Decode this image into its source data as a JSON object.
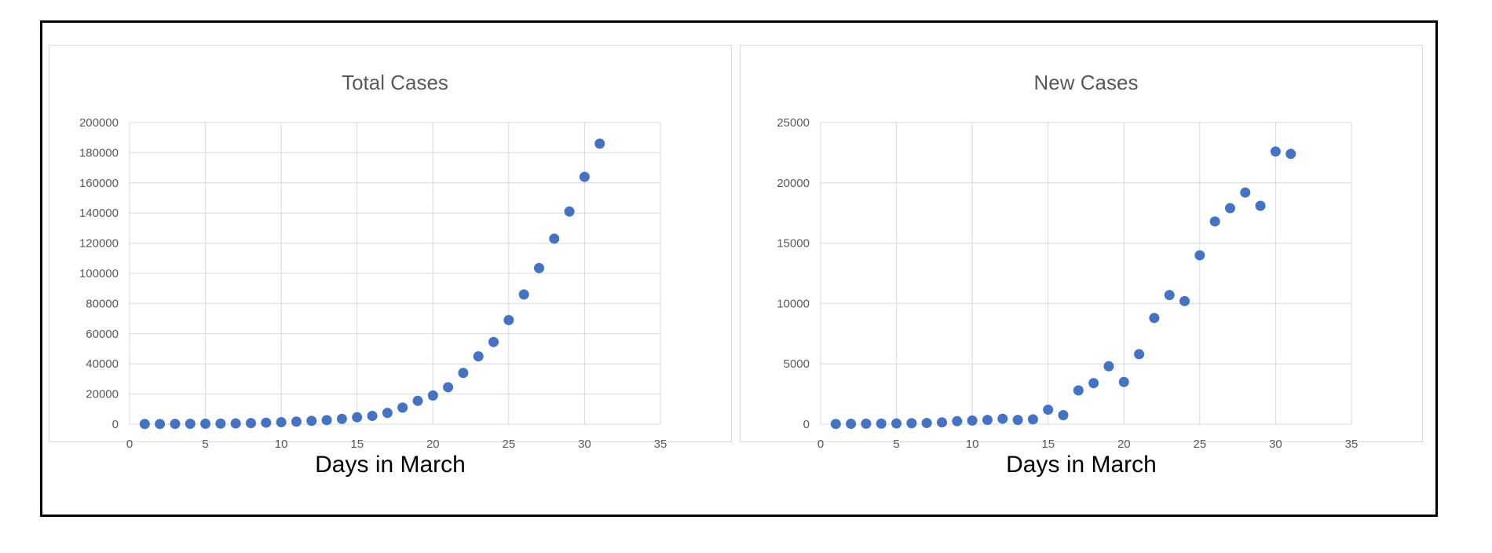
{
  "colors": {
    "marker": "#4472c4",
    "grid": "#d9d9d9",
    "text": "#595959"
  },
  "chart_data": [
    {
      "type": "scatter",
      "title": "Total Cases",
      "xlabel": "Days in March",
      "ylabel": "",
      "xlim": [
        0,
        35
      ],
      "ylim": [
        0,
        200000
      ],
      "xticks": [
        0,
        5,
        10,
        15,
        20,
        25,
        30,
        35
      ],
      "yticks": [
        0,
        20000,
        40000,
        60000,
        80000,
        100000,
        120000,
        140000,
        160000,
        180000,
        200000
      ],
      "grid": true,
      "x": [
        1,
        2,
        3,
        4,
        5,
        6,
        7,
        8,
        9,
        10,
        11,
        12,
        13,
        14,
        15,
        16,
        17,
        18,
        19,
        20,
        21,
        22,
        23,
        24,
        25,
        26,
        27,
        28,
        29,
        30,
        31
      ],
      "y": [
        100,
        150,
        200,
        250,
        300,
        400,
        500,
        700,
        1000,
        1300,
        1700,
        2200,
        2700,
        3500,
        4600,
        5500,
        7500,
        11000,
        15500,
        19000,
        24500,
        34000,
        45000,
        54500,
        69000,
        86000,
        103500,
        123000,
        141000,
        164000,
        186000
      ]
    },
    {
      "type": "scatter",
      "title": "New Cases",
      "xlabel": "Days in March",
      "ylabel": "",
      "xlim": [
        0,
        35
      ],
      "ylim": [
        0,
        25000
      ],
      "xticks": [
        0,
        5,
        10,
        15,
        20,
        25,
        30,
        35
      ],
      "yticks": [
        0,
        5000,
        10000,
        15000,
        20000,
        25000
      ],
      "grid": true,
      "x": [
        1,
        2,
        3,
        4,
        5,
        6,
        7,
        8,
        9,
        10,
        11,
        12,
        13,
        14,
        15,
        16,
        17,
        18,
        19,
        20,
        21,
        22,
        23,
        24,
        25,
        26,
        27,
        28,
        29,
        30,
        31
      ],
      "y": [
        20,
        30,
        40,
        50,
        60,
        80,
        100,
        150,
        250,
        300,
        350,
        450,
        350,
        400,
        1200,
        750,
        2800,
        3400,
        4800,
        3500,
        5800,
        8800,
        10700,
        10200,
        14000,
        16800,
        17900,
        19200,
        18100,
        22600,
        22400
      ]
    }
  ]
}
